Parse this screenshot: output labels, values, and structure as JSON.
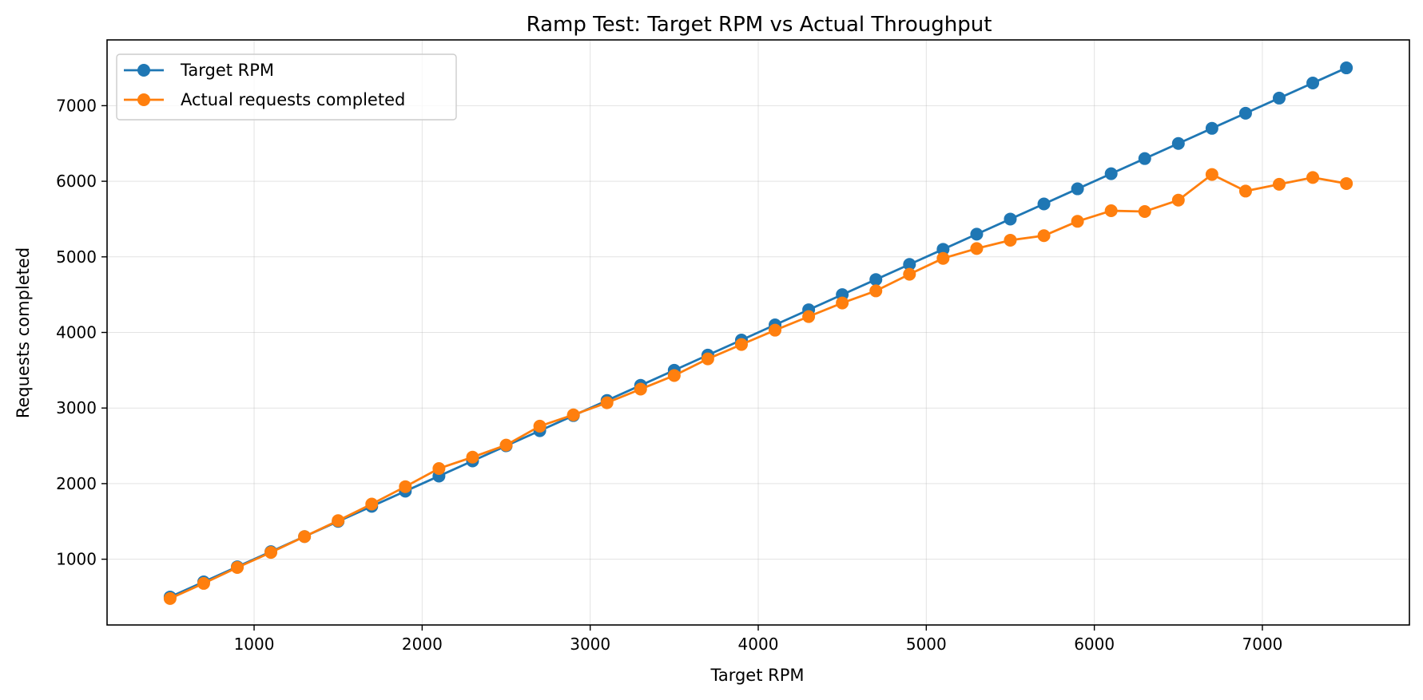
{
  "chart_data": {
    "type": "line",
    "title": "Ramp Test: Target RPM vs Actual Throughput",
    "xlabel": "Target RPM",
    "ylabel": "Requests completed",
    "xlim": [
      125,
      7875
    ],
    "ylim": [
      130,
      7870
    ],
    "xticks": [
      1000,
      2000,
      3000,
      4000,
      5000,
      6000,
      7000
    ],
    "yticks": [
      1000,
      2000,
      3000,
      4000,
      5000,
      6000,
      7000
    ],
    "grid": true,
    "legend_position": "top-left",
    "x": [
      500,
      700,
      900,
      1100,
      1300,
      1500,
      1700,
      1900,
      2100,
      2300,
      2500,
      2700,
      2900,
      3100,
      3300,
      3500,
      3700,
      3900,
      4100,
      4300,
      4500,
      4700,
      4900,
      5100,
      5300,
      5500,
      5700,
      5900,
      6100,
      6300,
      6500,
      6700,
      6900,
      7100,
      7300,
      7500
    ],
    "series": [
      {
        "name": "Target RPM",
        "color": "#1f77b4",
        "values": [
          500,
          700,
          900,
          1100,
          1300,
          1500,
          1700,
          1900,
          2100,
          2300,
          2500,
          2700,
          2900,
          3100,
          3300,
          3500,
          3700,
          3900,
          4100,
          4300,
          4500,
          4700,
          4900,
          5100,
          5300,
          5500,
          5700,
          5900,
          6100,
          6300,
          6500,
          6700,
          6900,
          7100,
          7300,
          7500
        ]
      },
      {
        "name": "Actual requests completed",
        "color": "#ff7f0e",
        "values": [
          480,
          680,
          890,
          1090,
          1300,
          1510,
          1730,
          1960,
          2200,
          2350,
          2510,
          2760,
          2910,
          3070,
          3250,
          3430,
          3650,
          3840,
          4030,
          4210,
          4390,
          4550,
          4770,
          4980,
          5110,
          5220,
          5280,
          5470,
          5610,
          5600,
          5750,
          6090,
          5870,
          5960,
          6050,
          5970
        ]
      }
    ]
  }
}
